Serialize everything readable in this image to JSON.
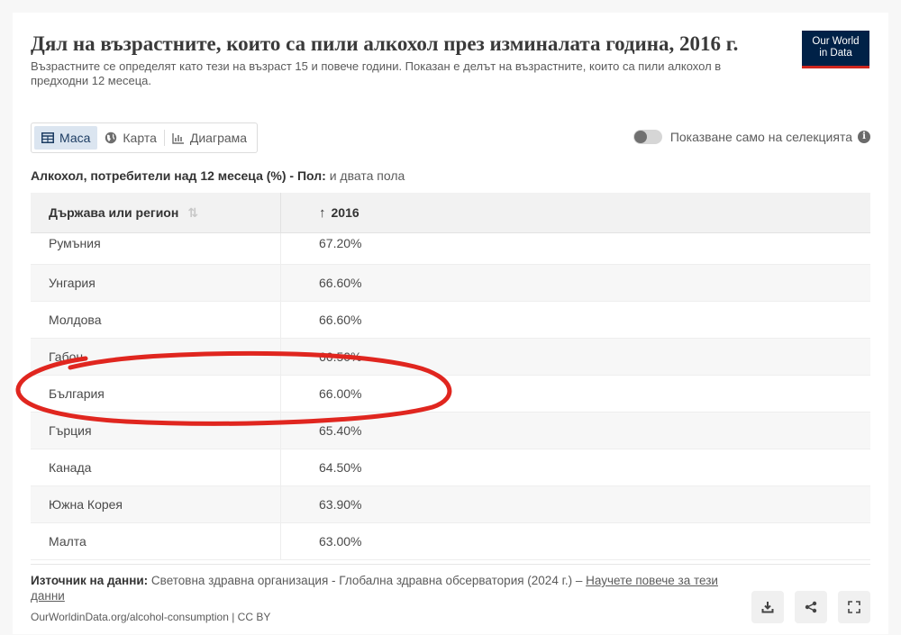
{
  "header": {
    "title": "Дял на възрастните, които са пили алкохол през изминалата година, 2016 г.",
    "subtitle_line1": "Възрастните се определят като тези на възраст 15 и повече години. Показан е делът на възрастните, които са пили алкохол в",
    "subtitle_line2": "предходни 12 месеца.",
    "logo_line1": "Our World",
    "logo_line2": "in Data"
  },
  "tabs": [
    {
      "label": "Маса",
      "icon": "table-icon",
      "active": true
    },
    {
      "label": "Карта",
      "icon": "globe-icon",
      "active": false
    },
    {
      "label": "Диаграма",
      "icon": "chart-icon",
      "active": false
    }
  ],
  "toggle": {
    "label": "Показване само на селекцията",
    "on": false
  },
  "table": {
    "caption_metric": "Алкохол, потребители над 12 месеца (%) - Пол:",
    "caption_value": "и двата пола",
    "col_country": "Държава или регион",
    "col_year": "2016",
    "col_year_arrow": "↑",
    "rows": [
      {
        "country": "Румъния",
        "value": "67.20%"
      },
      {
        "country": "Унгария",
        "value": "66.60%"
      },
      {
        "country": "Молдова",
        "value": "66.60%"
      },
      {
        "country": "Габон",
        "value": "66.50%"
      },
      {
        "country": "България",
        "value": "66.00%"
      },
      {
        "country": "Гърция",
        "value": "65.40%"
      },
      {
        "country": "Канада",
        "value": "64.50%"
      },
      {
        "country": "Южна Корея",
        "value": "63.90%"
      },
      {
        "country": "Малта",
        "value": "63.00%"
      }
    ]
  },
  "footer": {
    "source_label": "Източник на данни:",
    "source_text": "Световна здравна организация - Глобална здравна обсерватория (2024 г.) –",
    "learn_more": "Научете повече за тези данни",
    "url": "OurWorldinData.org/alcohol-consumption | CC BY"
  },
  "actions": [
    {
      "name": "download-icon"
    },
    {
      "name": "share-icon"
    },
    {
      "name": "fullscreen-icon"
    }
  ],
  "annotation": {
    "color": "#e0261f",
    "highlighted_row": "България"
  }
}
